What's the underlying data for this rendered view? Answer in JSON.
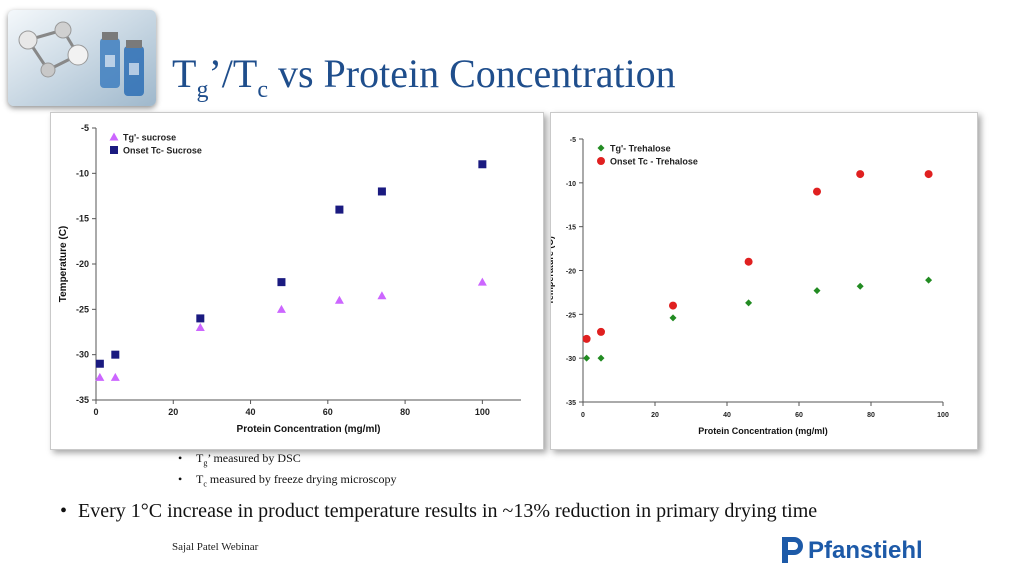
{
  "slide": {
    "title": {
      "main": "T",
      "sub1": "g",
      "mid": "’/T",
      "sub2": "c",
      "rest": " vs Protein Concentration"
    },
    "notes": [
      {
        "main": "T",
        "sub": "g",
        "rest": "’ measured by DSC"
      },
      {
        "main": "T",
        "sub": "c",
        "rest": " measured by freeze drying microscopy"
      }
    ],
    "bullet": "Every 1°C increase in product temperature results in ~13% reduction in primary drying time",
    "footer": "Sajal Patel Webinar",
    "brand_text": "Pfanstiehl"
  },
  "colors": {
    "title": "#1f4e8c",
    "sucrose_tg": "#cc66ff",
    "sucrose_tc": "#1a1a80",
    "trehalose_tg": "#228b22",
    "trehalose_tc": "#e02020",
    "brand": "#1d5aa8"
  },
  "chart_data": [
    {
      "type": "scatter",
      "xlabel": "Protein Concentration (mg/ml)",
      "ylabel": "Temperature (C)",
      "xlim": [
        0,
        110
      ],
      "ylim": [
        -35,
        -5
      ],
      "xticks": [
        0,
        20,
        40,
        60,
        80,
        100
      ],
      "yticks": [
        -5,
        -10,
        -15,
        -20,
        -25,
        -30,
        -35
      ],
      "grid": false,
      "legend": "top-left",
      "series": [
        {
          "name": "Tg'- sucrose",
          "marker": "triangle",
          "x": [
            1,
            5,
            27,
            48,
            63,
            74,
            100
          ],
          "y": [
            -32.5,
            -32.5,
            -27,
            -25,
            -24,
            -23.5,
            -22
          ]
        },
        {
          "name": "Onset Tc- Sucrose",
          "marker": "square",
          "x": [
            1,
            5,
            27,
            48,
            63,
            74,
            100
          ],
          "y": [
            -31,
            -30,
            -26,
            -22,
            -14,
            -12,
            -9
          ]
        }
      ]
    },
    {
      "type": "scatter",
      "xlabel": "Protein Concentration (mg/ml)",
      "ylabel": "Temperature (C)",
      "xlim": [
        0,
        100
      ],
      "ylim": [
        -35,
        -5
      ],
      "xticks": [
        0,
        20,
        40,
        60,
        80,
        100
      ],
      "yticks": [
        -5,
        -10,
        -15,
        -20,
        -25,
        -30,
        -35
      ],
      "grid": false,
      "legend": "top-left",
      "series": [
        {
          "name": "Tg'- Trehalose",
          "marker": "diamond",
          "x": [
            1,
            5,
            25,
            46,
            65,
            77,
            96
          ],
          "y": [
            -30,
            -30,
            -25.4,
            -23.7,
            -22.3,
            -21.8,
            -21.1
          ]
        },
        {
          "name": "Onset Tc - Trehalose",
          "marker": "circle",
          "x": [
            1,
            5,
            25,
            46,
            65,
            77,
            96
          ],
          "y": [
            -27.8,
            -27,
            -24,
            -19,
            -11,
            -9,
            -9
          ]
        }
      ]
    }
  ]
}
